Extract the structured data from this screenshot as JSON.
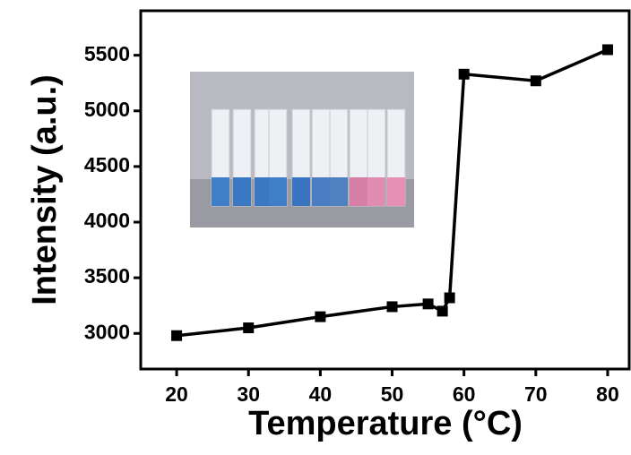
{
  "chart_data": {
    "type": "line",
    "x_label": "Temperature (°C)",
    "y_label": "Intensity (a.u.)",
    "x": [
      20,
      30,
      40,
      50,
      55,
      57,
      58,
      60,
      70,
      80
    ],
    "series": [
      {
        "color": "#000000",
        "values": [
          2980,
          3050,
          3150,
          3240,
          3265,
          3200,
          3320,
          5330,
          5270,
          5550
        ]
      }
    ],
    "xlim": [
      15,
      83
    ],
    "xticks": [
      20,
      30,
      40,
      50,
      60,
      70,
      80
    ],
    "ylim": [
      2680,
      5900
    ],
    "yticks": [
      3000,
      3500,
      4000,
      4500,
      5000,
      5500
    ]
  }
}
